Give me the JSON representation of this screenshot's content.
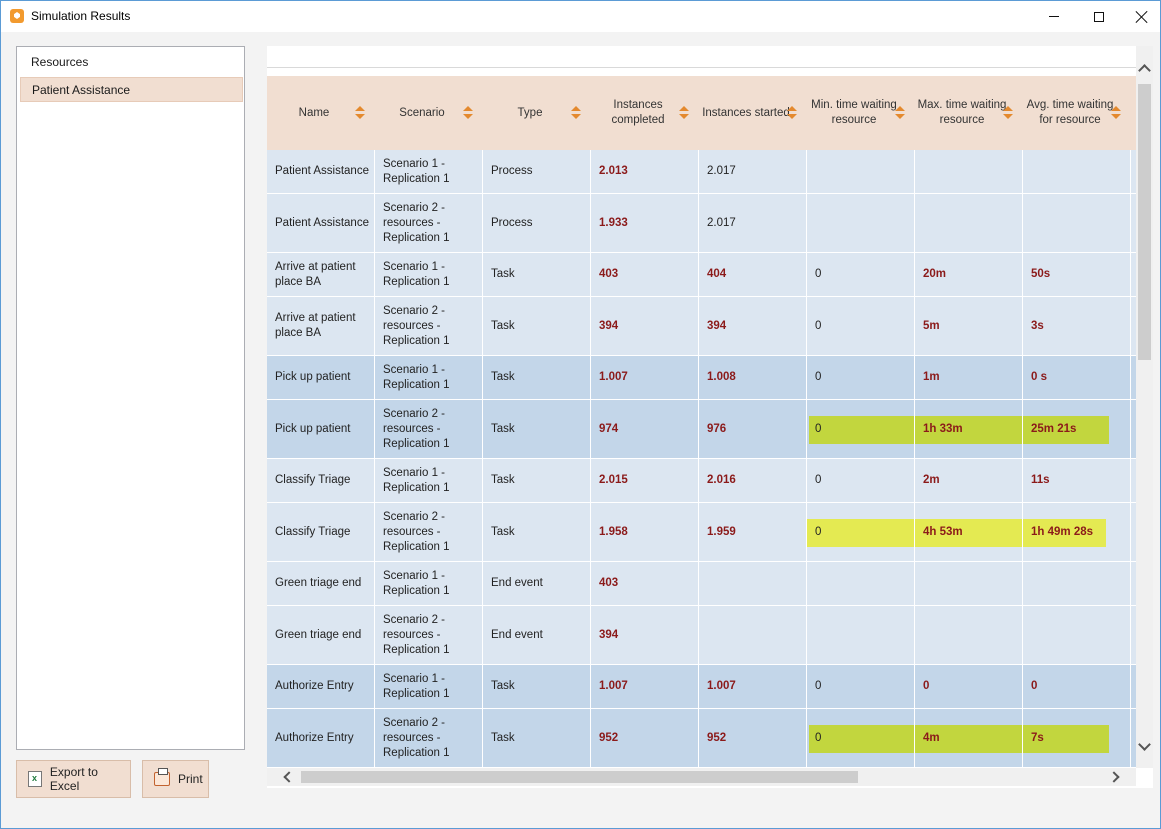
{
  "window": {
    "title": "Simulation Results"
  },
  "sidebar": {
    "items": [
      {
        "label": "Resources",
        "selected": false
      },
      {
        "label": "Patient Assistance",
        "selected": true
      }
    ]
  },
  "buttons": {
    "export_label": "Export to Excel",
    "print_label": "Print"
  },
  "table": {
    "columns": [
      {
        "key": "name",
        "label": "Name"
      },
      {
        "key": "scenario",
        "label": "Scenario"
      },
      {
        "key": "type",
        "label": "Type"
      },
      {
        "key": "completed",
        "label": "Instances completed"
      },
      {
        "key": "started",
        "label": "Instances started"
      },
      {
        "key": "min_wait",
        "label": "Min. time waiting resource"
      },
      {
        "key": "max_wait",
        "label": "Max. time waiting resource"
      },
      {
        "key": "avg_wait",
        "label": "Avg. time waiting for resource"
      }
    ],
    "rows": [
      {
        "name": "Patient Assistance",
        "scenario": "Scenario 1 - Replication 1",
        "type": "Process",
        "completed": "2.013",
        "started": "2.017",
        "min_wait": "",
        "max_wait": "",
        "avg_wait": ""
      },
      {
        "name": "Patient Assistance",
        "scenario": "Scenario 2 - resources - Replication 1",
        "type": "Process",
        "completed": "1.933",
        "started": "2.017",
        "min_wait": "",
        "max_wait": "",
        "avg_wait": ""
      },
      {
        "name": "Arrive at patient place BA",
        "scenario": "Scenario 1 - Replication 1",
        "type": "Task",
        "completed": "403",
        "started": "404",
        "min_wait": "0",
        "max_wait": "20m",
        "avg_wait": "50s"
      },
      {
        "name": "Arrive at patient place BA",
        "scenario": "Scenario 2 - resources - Replication 1",
        "type": "Task",
        "completed": "394",
        "started": "394",
        "min_wait": "0",
        "max_wait": "5m",
        "avg_wait": "3s"
      },
      {
        "name": "Pick up patient",
        "scenario": "Scenario 1 - Replication 1",
        "type": "Task",
        "completed": "1.007",
        "started": "1.008",
        "min_wait": "0",
        "max_wait": "1m",
        "avg_wait": "0 s"
      },
      {
        "name": "Pick up patient",
        "scenario": "Scenario 2 - resources - Replication 1",
        "type": "Task",
        "completed": "974",
        "started": "976",
        "min_wait": "0",
        "max_wait": "1h 33m",
        "avg_wait": "25m 21s",
        "highlight": "green"
      },
      {
        "name": "Classify Triage",
        "scenario": "Scenario 1 - Replication 1",
        "type": "Task",
        "completed": "2.015",
        "started": "2.016",
        "min_wait": "0",
        "max_wait": "2m",
        "avg_wait": "11s"
      },
      {
        "name": "Classify Triage",
        "scenario": "Scenario 2 - resources - Replication 1",
        "type": "Task",
        "completed": "1.958",
        "started": "1.959",
        "min_wait": "0",
        "max_wait": "4h 53m",
        "avg_wait": "1h 49m 28s",
        "highlight": "yellow"
      },
      {
        "name": "Green triage end",
        "scenario": "Scenario 1 - Replication 1",
        "type": "End event",
        "completed": "403",
        "started": "",
        "min_wait": "",
        "max_wait": "",
        "avg_wait": ""
      },
      {
        "name": "Green triage end",
        "scenario": "Scenario 2 - resources - Replication 1",
        "type": "End event",
        "completed": "394",
        "started": "",
        "min_wait": "",
        "max_wait": "",
        "avg_wait": ""
      },
      {
        "name": "Authorize Entry",
        "scenario": "Scenario 1 - Replication 1",
        "type": "Task",
        "completed": "1.007",
        "started": "1.007",
        "min_wait": "0",
        "max_wait": "0",
        "avg_wait": "0"
      },
      {
        "name": "Authorize Entry",
        "scenario": "Scenario 2 - resources - Replication 1",
        "type": "Task",
        "completed": "952",
        "started": "952",
        "min_wait": "0",
        "max_wait": "4m",
        "avg_wait": "7s",
        "highlight": "green"
      }
    ]
  },
  "colors": {
    "header_bg": "#f1ded1",
    "row_light": "#dce6f1",
    "row_dark": "#c3d6e9",
    "value_red": "#8b1a1a",
    "highlight_green": "#c2d63e",
    "highlight_yellow": "#e4ea52",
    "sort_orange": "#e4892e"
  }
}
